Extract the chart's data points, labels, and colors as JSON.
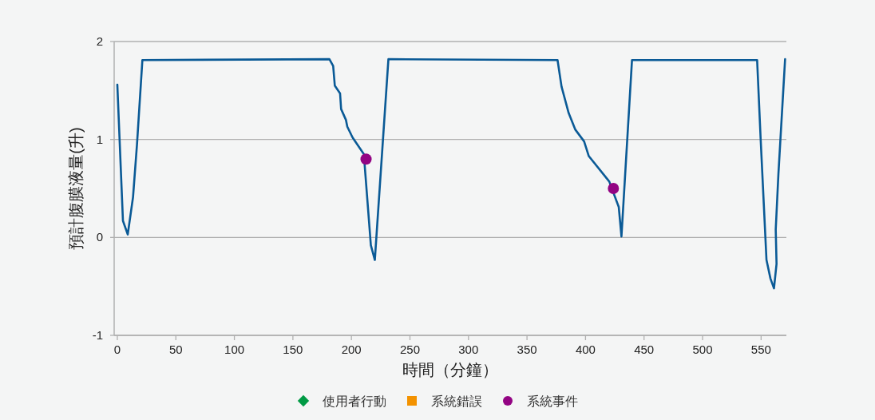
{
  "chart_data": {
    "type": "line",
    "xlabel": "時間（分鐘）",
    "ylabel": "預計腹膜液量(升)",
    "xlim": [
      -2.7,
      571.6
    ],
    "ylim": [
      -1,
      2
    ],
    "xticks": [
      0,
      50,
      100,
      150,
      200,
      250,
      300,
      350,
      400,
      450,
      500,
      550
    ],
    "yticks": [
      -1,
      0,
      1,
      2
    ],
    "grid": "y",
    "legend": "bottom",
    "marker": "none",
    "line_style": "solid",
    "series": [
      {
        "color": "#0a5a96",
        "x": [
          0,
          4.8,
          8.9,
          13.4,
          16.8,
          21.4,
          181.2,
          184.4,
          185.8,
          190.3,
          191.2,
          195.3,
          196.5,
          201,
          210.6,
          216.6,
          220,
          231.6,
          376.1,
          379.5,
          385.6,
          391.3,
          398.8,
          402.8,
          420.3,
          428.4,
          430.7,
          439.7,
          546.6,
          549.6,
          554.6,
          558,
          561,
          563.2,
          562.5,
          564.8,
          570.5
        ],
        "values": [
          1.56,
          0.17,
          0.03,
          0.41,
          0.95,
          1.81,
          1.82,
          1.75,
          1.55,
          1.47,
          1.31,
          1.2,
          1.13,
          1.02,
          0.85,
          -0.08,
          -0.23,
          1.82,
          1.81,
          1.54,
          1.27,
          1.1,
          0.98,
          0.83,
          0.57,
          0.31,
          0.01,
          1.81,
          1.81,
          1.01,
          -0.23,
          -0.42,
          -0.52,
          -0.27,
          0.08,
          0.65,
          1.82
        ]
      },
      {
        "type": "scatter",
        "name": "使用者行動",
        "color": "#009a44",
        "marker": "diamond"
      },
      {
        "type": "scatter",
        "name": "系統錯誤",
        "color": "#f39200",
        "marker": "square"
      },
      {
        "type": "scatter",
        "name": "系統事件",
        "color": "#930483",
        "marker": "circle",
        "x": [
          212.5,
          423.8
        ],
        "values": [
          0.8,
          0.5
        ]
      }
    ]
  }
}
